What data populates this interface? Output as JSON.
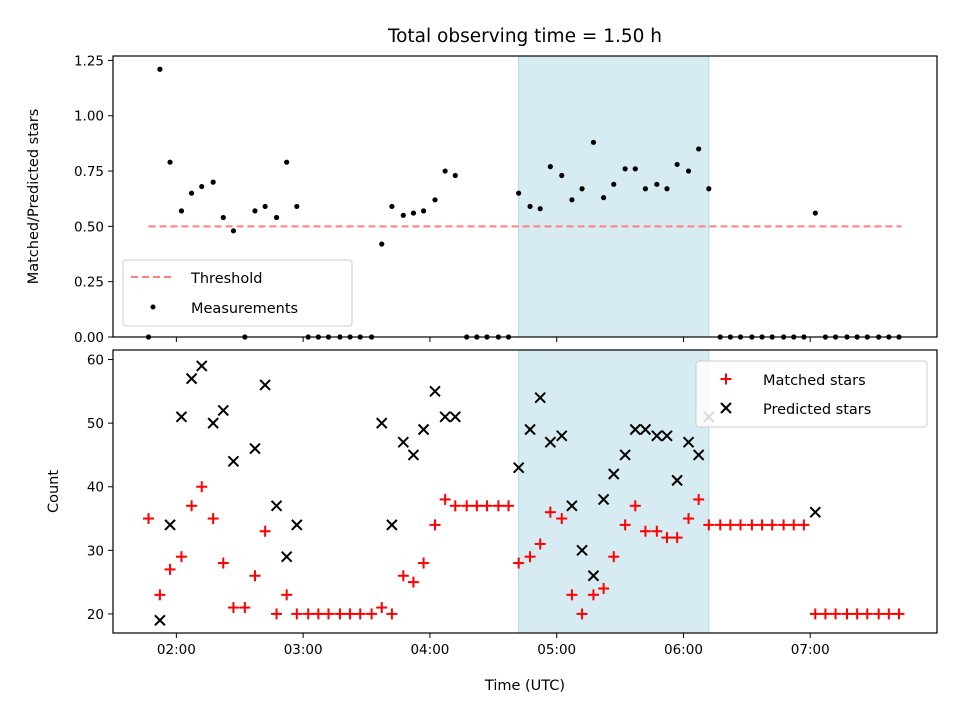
{
  "title": "Total observing time = 1.50 h",
  "colors": {
    "threshold": "#ff7f7f",
    "measurement": "#000000",
    "matched": "#ff0000",
    "predicted": "#000000",
    "shade": "#add8e6"
  },
  "chart_data": [
    {
      "type": "scatter",
      "ylabel": "Matched/Predicted stars",
      "ylim": [
        0,
        1.27
      ],
      "yticks": [
        "0.00",
        "0.25",
        "0.50",
        "0.75",
        "1.00",
        "1.25"
      ],
      "xlim": [
        1.5,
        8.0
      ],
      "shaded_region": [
        4.7,
        6.2
      ],
      "legend_position": "lower-left",
      "threshold": {
        "name": "Threshold",
        "value": 0.5,
        "x_range": [
          1.78,
          7.72
        ]
      },
      "series": [
        {
          "name": "Measurements",
          "x": [
            1.78,
            1.87,
            1.95,
            2.04,
            2.12,
            2.2,
            2.29,
            2.37,
            2.45,
            2.54,
            2.62,
            2.7,
            2.79,
            2.87,
            2.95,
            3.04,
            3.12,
            3.2,
            3.29,
            3.37,
            3.45,
            3.54,
            3.62,
            3.7,
            3.79,
            3.87,
            3.95,
            4.04,
            4.12,
            4.2,
            4.29,
            4.37,
            4.45,
            4.54,
            4.62,
            4.7,
            4.79,
            4.87,
            4.95,
            5.04,
            5.12,
            5.2,
            5.29,
            5.37,
            5.45,
            5.54,
            5.62,
            5.7,
            5.79,
            5.87,
            5.95,
            6.04,
            6.12,
            6.2,
            6.29,
            6.37,
            6.45,
            6.54,
            6.62,
            6.7,
            6.79,
            6.87,
            6.95,
            7.04,
            7.12,
            7.2,
            7.29,
            7.37,
            7.45,
            7.54,
            7.62,
            7.7
          ],
          "y": [
            0,
            1.21,
            0.79,
            0.57,
            0.65,
            0.68,
            0.7,
            0.54,
            0.48,
            0,
            0.57,
            0.59,
            0.54,
            0.79,
            0.59,
            0,
            0,
            0,
            0,
            0,
            0,
            0,
            0.42,
            0.59,
            0.55,
            0.56,
            0.57,
            0.62,
            0.75,
            0.73,
            0,
            0,
            0,
            0,
            0,
            0.65,
            0.59,
            0.58,
            0.77,
            0.73,
            0.62,
            0.67,
            0.88,
            0.63,
            0.69,
            0.76,
            0.76,
            0.67,
            0.69,
            0.67,
            0.78,
            0.75,
            0.85,
            0.67,
            0,
            0,
            0,
            0,
            0,
            0,
            0,
            0,
            0,
            0.56,
            0,
            0,
            0,
            0,
            0,
            0,
            0,
            0
          ]
        }
      ]
    },
    {
      "type": "scatter",
      "title": "Total observing time = 1.50 h",
      "xlabel": "Time (UTC)",
      "ylabel": "Count",
      "ylim": [
        17,
        61.5
      ],
      "yticks": [
        "20",
        "30",
        "40",
        "50",
        "60"
      ],
      "xlim": [
        1.5,
        8.0
      ],
      "xticks": [
        "02:00",
        "03:00",
        "04:00",
        "05:00",
        "06:00",
        "07:00"
      ],
      "shaded_region": [
        4.7,
        6.2
      ],
      "legend_position": "upper-right",
      "series": [
        {
          "name": "Matched stars",
          "x": [
            1.78,
            1.87,
            1.95,
            2.04,
            2.12,
            2.2,
            2.29,
            2.37,
            2.45,
            2.54,
            2.62,
            2.7,
            2.79,
            2.87,
            2.95,
            3.04,
            3.12,
            3.2,
            3.29,
            3.37,
            3.45,
            3.54,
            3.62,
            3.7,
            3.79,
            3.87,
            3.95,
            4.04,
            4.12,
            4.2,
            4.29,
            4.37,
            4.45,
            4.54,
            4.62,
            4.7,
            4.79,
            4.87,
            4.95,
            5.04,
            5.12,
            5.2,
            5.29,
            5.37,
            5.45,
            5.54,
            5.62,
            5.7,
            5.79,
            5.87,
            5.95,
            6.04,
            6.12,
            6.2,
            6.29,
            6.37,
            6.45,
            6.54,
            6.62,
            6.7,
            6.79,
            6.87,
            6.95,
            7.04,
            7.12,
            7.2,
            7.29,
            7.37,
            7.45,
            7.54,
            7.62,
            7.7
          ],
          "y": [
            35,
            23,
            27,
            29,
            37,
            40,
            35,
            28,
            21,
            21,
            26,
            33,
            20,
            23,
            20,
            20,
            20,
            20,
            20,
            20,
            20,
            20,
            21,
            20,
            26,
            25,
            28,
            34,
            38,
            37,
            37,
            37,
            37,
            37,
            37,
            28,
            29,
            31,
            36,
            35,
            23,
            20,
            23,
            24,
            29,
            34,
            37,
            33,
            33,
            32,
            32,
            35,
            38,
            34,
            34,
            34,
            34,
            34,
            34,
            34,
            34,
            34,
            34,
            20,
            20,
            20,
            20,
            20,
            20,
            20,
            20,
            20
          ]
        },
        {
          "name": "Predicted stars",
          "x": [
            1.87,
            1.95,
            2.04,
            2.12,
            2.2,
            2.29,
            2.37,
            2.45,
            2.62,
            2.7,
            2.79,
            2.87,
            2.95,
            3.62,
            3.7,
            3.79,
            3.87,
            3.95,
            4.04,
            4.12,
            4.2,
            4.7,
            4.79,
            4.87,
            4.95,
            5.04,
            5.12,
            5.2,
            5.29,
            5.37,
            5.45,
            5.54,
            5.62,
            5.7,
            5.79,
            5.87,
            5.95,
            6.04,
            6.12,
            6.2,
            7.04
          ],
          "y": [
            19,
            34,
            51,
            57,
            59,
            50,
            52,
            44,
            46,
            56,
            37,
            29,
            34,
            50,
            34,
            47,
            45,
            49,
            55,
            51,
            51,
            43,
            49,
            54,
            47,
            48,
            37,
            30,
            26,
            38,
            42,
            45,
            49,
            49,
            48,
            48,
            41,
            47,
            45,
            51,
            36
          ]
        }
      ]
    }
  ]
}
